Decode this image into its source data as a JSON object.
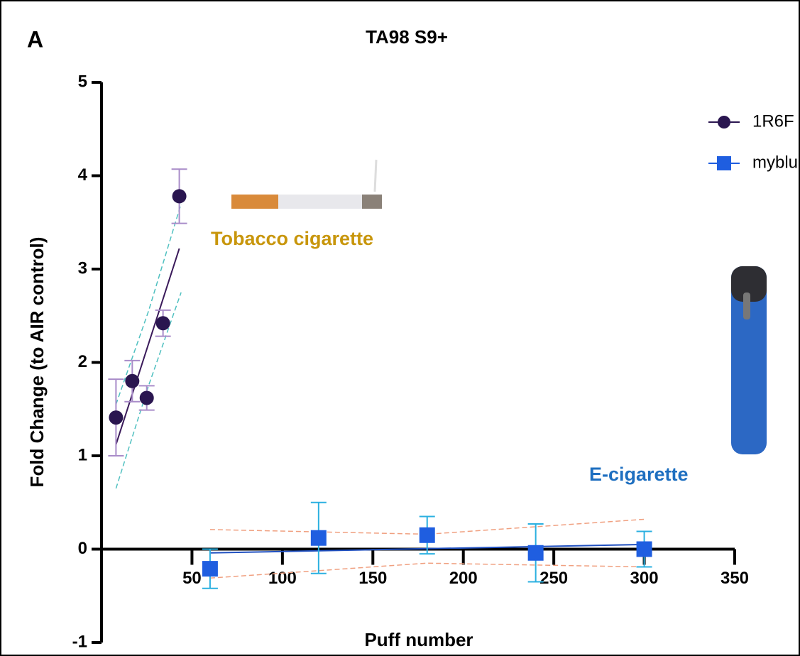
{
  "chart_data": {
    "type": "scatter",
    "panel_label": "A",
    "title": "TA98 S9+",
    "xlabel": "Puff number",
    "ylabel": "Fold Change (to AIR control)",
    "xlim": [
      0,
      350
    ],
    "ylim": [
      -1,
      5
    ],
    "xticks": [
      50,
      100,
      150,
      200,
      250,
      300,
      350
    ],
    "yticks": [
      -1,
      0,
      1,
      2,
      3,
      4,
      5
    ],
    "legend": "upper right",
    "annotations": [
      {
        "text": "Tobacco cigarette",
        "color": "#c8960c"
      },
      {
        "text": "E-cigarette",
        "color": "#1e6fc0"
      }
    ],
    "series": [
      {
        "name": "1R6F",
        "marker": "circle",
        "color": "#2a1650",
        "error_color": "#a98cc9",
        "x": [
          8,
          17,
          25,
          34,
          43
        ],
        "values": [
          1.41,
          1.8,
          1.62,
          2.42,
          3.78
        ],
        "errors": [
          0.41,
          0.22,
          0.13,
          0.14,
          0.29
        ],
        "fit": {
          "color": "#3a1a5a",
          "x": [
            8,
            43
          ],
          "y": [
            1.12,
            3.22
          ]
        },
        "band": {
          "color": "#4fc0c0",
          "x": [
            8,
            26,
            44
          ],
          "upper": [
            1.55,
            2.55,
            3.7
          ],
          "lower": [
            0.65,
            1.75,
            2.75
          ]
        }
      },
      {
        "name": "myblu",
        "marker": "square",
        "color": "#1f5ee0",
        "error_color": "#2bb0e0",
        "x": [
          60,
          120,
          180,
          240,
          300
        ],
        "values": [
          -0.21,
          0.12,
          0.15,
          -0.04,
          0.0
        ],
        "errors": [
          0.21,
          0.38,
          0.2,
          0.31,
          0.19
        ],
        "fit": {
          "color": "#2050c0",
          "x": [
            60,
            300
          ],
          "y": [
            -0.04,
            0.05
          ]
        },
        "band": {
          "color": "#f0a080",
          "x": [
            60,
            180,
            300
          ],
          "upper": [
            0.21,
            0.16,
            0.32
          ],
          "lower": [
            -0.31,
            -0.15,
            -0.19
          ]
        }
      }
    ]
  }
}
